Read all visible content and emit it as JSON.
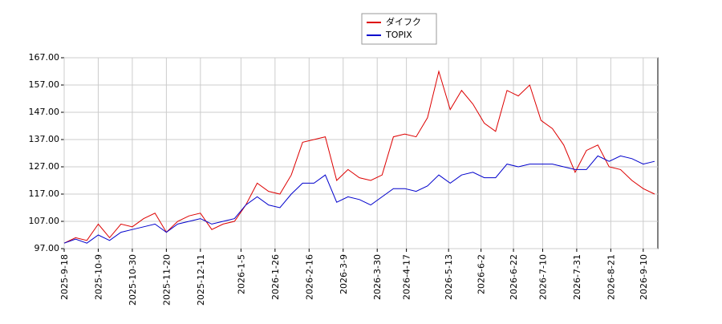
{
  "chart_data": {
    "type": "line",
    "x": [
      "2025-9-18",
      "2025-9-25",
      "2025-10-2",
      "2025-10-9",
      "2025-10-16",
      "2025-10-23",
      "2025-10-30",
      "2025-11-6",
      "2025-11-13",
      "2025-11-20",
      "2025-11-27",
      "2025-12-4",
      "2025-12-11",
      "2025-12-18",
      "2025-12-25",
      "2026-1-1",
      "2026-1-8",
      "2026-1-15",
      "2026-1-22",
      "2026-1-29",
      "2026-2-5",
      "2026-2-12",
      "2026-2-19",
      "2026-2-26",
      "2026-3-5",
      "2026-3-12",
      "2026-3-19",
      "2026-3-26",
      "2026-4-2",
      "2026-4-9",
      "2026-4-16",
      "2026-4-23",
      "2026-4-30",
      "2026-5-7",
      "2026-5-14",
      "2026-5-21",
      "2026-5-28",
      "2026-6-4",
      "2026-6-11",
      "2026-6-18",
      "2026-6-25",
      "2026-7-2",
      "2026-7-9",
      "2026-7-16",
      "2026-7-23",
      "2026-7-30",
      "2026-8-6",
      "2026-8-13",
      "2026-8-20",
      "2026-8-27",
      "2026-9-3",
      "2026-9-10",
      "2026-9-17"
    ],
    "series": [
      {
        "name": "ダイフク",
        "color": "#dd0000",
        "values": [
          99,
          101,
          100,
          106,
          101,
          106,
          105,
          108,
          110,
          103,
          107,
          109,
          110,
          104,
          106,
          107,
          113,
          121,
          118,
          117,
          124,
          136,
          137,
          138,
          122,
          126,
          123,
          122,
          124,
          138,
          139,
          138,
          145,
          162,
          148,
          155,
          150,
          143,
          140,
          155,
          153,
          157,
          144,
          141,
          135,
          125,
          133,
          135,
          127,
          126,
          122,
          119,
          117
        ]
      },
      {
        "name": "TOPIX",
        "color": "#0000cc",
        "values": [
          99,
          100.5,
          99,
          102,
          100,
          103,
          104,
          105,
          106,
          103,
          106,
          107,
          108,
          106,
          107,
          108,
          113,
          116,
          113,
          112,
          117,
          121,
          121,
          124,
          114,
          116,
          115,
          113,
          116,
          119,
          119,
          118,
          120,
          124,
          121,
          124,
          125,
          123,
          123,
          128,
          127,
          128,
          128,
          128,
          127,
          126,
          126,
          131,
          129,
          131,
          130,
          128,
          129
        ]
      }
    ],
    "xlim": [
      "2025-9-18",
      "2026-9-19"
    ],
    "xticks": [
      "2025-9-18",
      "2025-10-9",
      "2025-10-30",
      "2025-11-20",
      "2025-12-11",
      "2026-1-5",
      "2026-1-26",
      "2026-2-16",
      "2026-3-9",
      "2026-3-30",
      "2026-4-17",
      "2026-5-13",
      "2026-6-2",
      "2026-6-22",
      "2026-7-10",
      "2026-7-31",
      "2026-8-21",
      "2026-9-10"
    ],
    "ylim": [
      97,
      167
    ],
    "yticks": [
      {
        "value": 97,
        "label": "97.00"
      },
      {
        "value": 107,
        "label": "107.00"
      },
      {
        "value": 117,
        "label": "117.00"
      },
      {
        "value": 127,
        "label": "127.00"
      },
      {
        "value": 137,
        "label": "137.00"
      },
      {
        "value": 147,
        "label": "147.00"
      },
      {
        "value": 157,
        "label": "157.00"
      },
      {
        "value": 167,
        "label": "167.00"
      }
    ],
    "grid": true
  }
}
